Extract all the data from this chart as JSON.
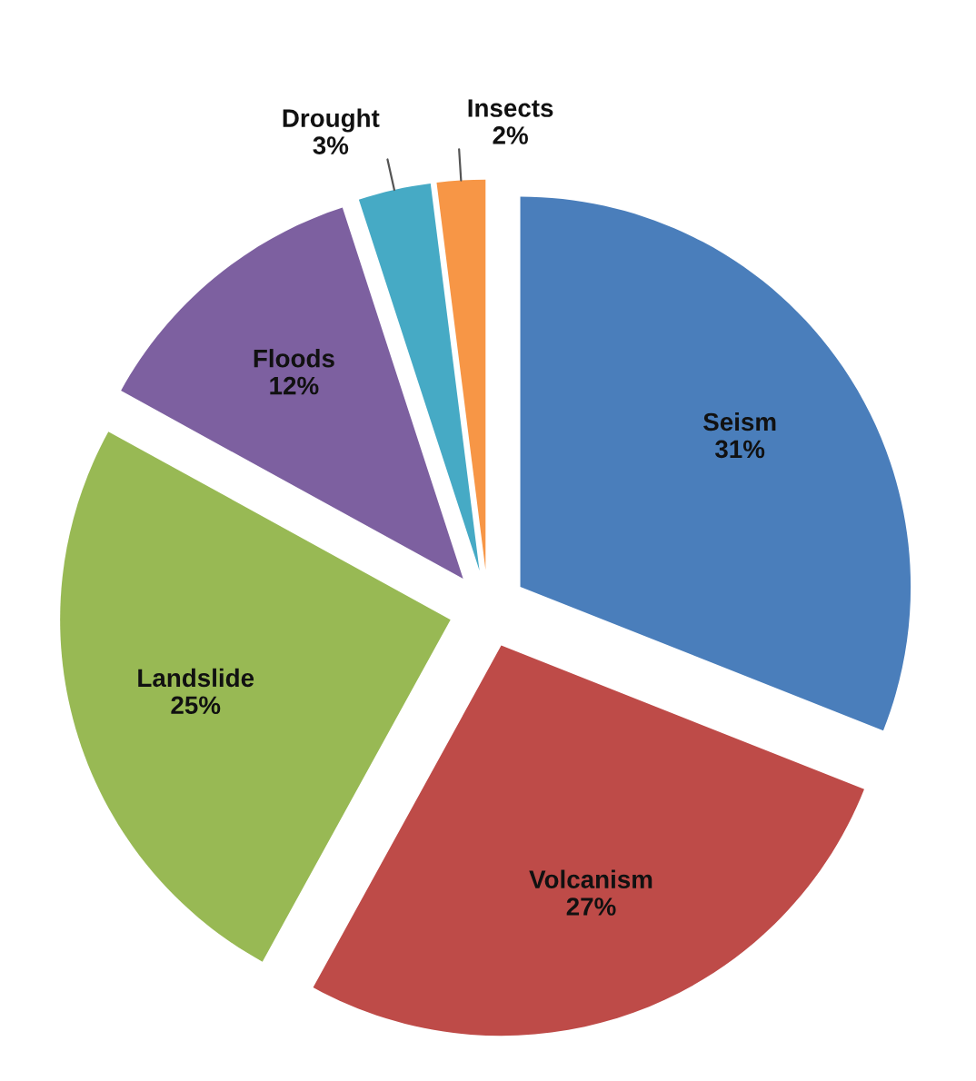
{
  "chart_data": {
    "type": "pie",
    "categories": [
      "Seism",
      "Volcanism",
      "Landslide",
      "Floods",
      "Drought",
      "Insects"
    ],
    "values": [
      31,
      27,
      25,
      12,
      3,
      2
    ],
    "value_labels": [
      "31%",
      "27%",
      "25%",
      "12%",
      "3%",
      "2%"
    ],
    "colors": [
      "#4a7ebb",
      "#be4b48",
      "#98b954",
      "#7d60a0",
      "#46aac5",
      "#f79646"
    ],
    "legend": false
  }
}
